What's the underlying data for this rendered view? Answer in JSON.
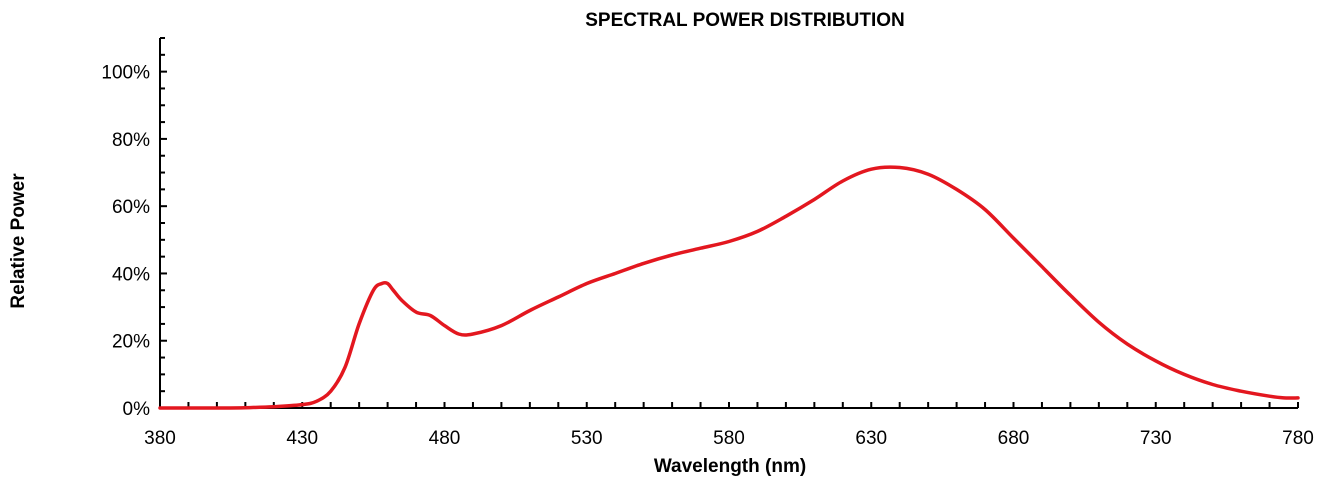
{
  "chart_data": {
    "type": "line",
    "title": "SPECTRAL POWER DISTRIBUTION",
    "xlabel": "Wavelength (nm)",
    "ylabel": "Relative Power",
    "xlim": [
      380,
      780
    ],
    "ylim": [
      0,
      1.1
    ],
    "x_ticks": [
      "380",
      "430",
      "480",
      "530",
      "580",
      "630",
      "680",
      "730",
      "780"
    ],
    "x_tick_values": [
      380,
      430,
      480,
      530,
      580,
      630,
      680,
      730,
      780
    ],
    "y_ticks": [
      "0%",
      "20%",
      "40%",
      "60%",
      "80%",
      "100%"
    ],
    "y_tick_values": [
      0,
      0.2,
      0.4,
      0.6,
      0.8,
      1.0
    ],
    "grid": false,
    "legend": "none",
    "series": [
      {
        "color": "#e3171f",
        "x": [
          380,
          400,
          410,
          420,
          430,
          435,
          440,
          445,
          450,
          455,
          458,
          460,
          462,
          465,
          470,
          475,
          480,
          485,
          490,
          500,
          510,
          520,
          530,
          540,
          550,
          560,
          570,
          580,
          590,
          600,
          610,
          620,
          630,
          640,
          650,
          660,
          670,
          680,
          690,
          700,
          710,
          720,
          730,
          740,
          750,
          760,
          770,
          775,
          780
        ],
        "y": [
          0,
          0,
          0.001,
          0.004,
          0.01,
          0.02,
          0.05,
          0.12,
          0.25,
          0.35,
          0.37,
          0.37,
          0.35,
          0.32,
          0.285,
          0.275,
          0.245,
          0.22,
          0.22,
          0.245,
          0.29,
          0.33,
          0.37,
          0.4,
          0.43,
          0.455,
          0.475,
          0.495,
          0.525,
          0.57,
          0.62,
          0.675,
          0.71,
          0.715,
          0.695,
          0.65,
          0.59,
          0.505,
          0.42,
          0.335,
          0.255,
          0.19,
          0.14,
          0.1,
          0.07,
          0.05,
          0.035,
          0.03,
          0.03
        ]
      }
    ]
  }
}
